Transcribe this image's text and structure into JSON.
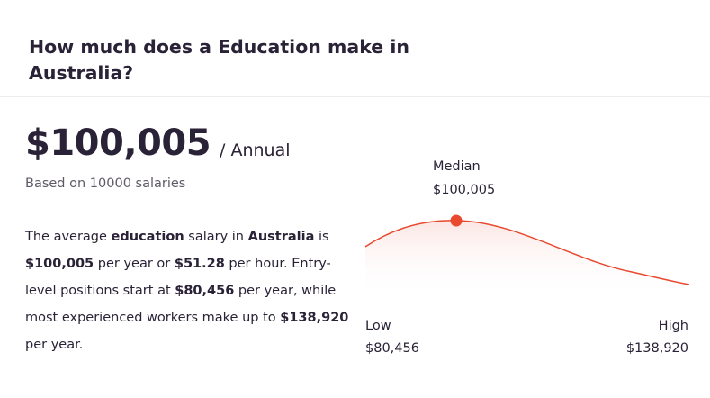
{
  "header": {
    "title": "How much does a Education make in Australia?"
  },
  "summary": {
    "salary": "$100,005",
    "period": "/ Annual",
    "based_on": "Based on 10000 salaries"
  },
  "description": {
    "t1": "The average ",
    "b1": "education",
    "t2": " salary in ",
    "b2": "Australia",
    "t3": " is ",
    "b3": "$100,005",
    "t4": " per year or ",
    "b4": "$51.28",
    "t5": " per hour. Entry-level positions start at ",
    "b5": "$80,456",
    "t6": " per year, while most experienced workers make up to ",
    "b6": "$138,920",
    "t7": " per year."
  },
  "distribution": {
    "median_label": "Median",
    "median_value": "$100,005",
    "low_label": "Low",
    "low_value": "$80,456",
    "high_label": "High",
    "high_value": "$138,920",
    "curve_color": "#e8492f",
    "fill_color": "#fbe3e0"
  }
}
